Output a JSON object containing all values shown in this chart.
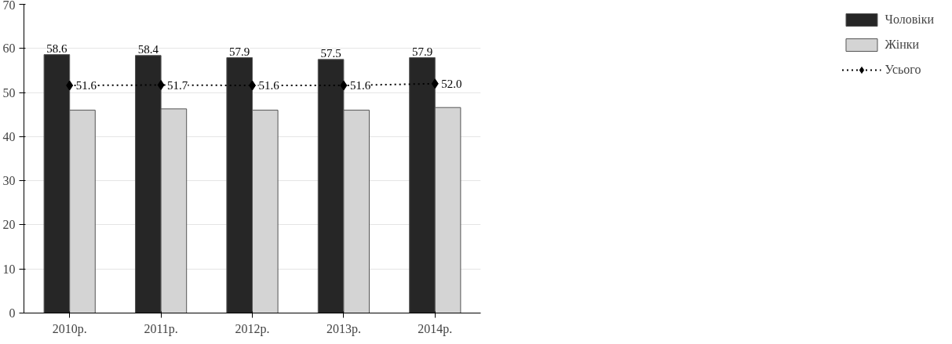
{
  "chart_data": {
    "type": "bar",
    "categories": [
      "2010р.",
      "2011р.",
      "2012р.",
      "2013р.",
      "2014р."
    ],
    "series": [
      {
        "name": "Чоловіки",
        "color": "#262626",
        "values": [
          58.6,
          58.4,
          57.9,
          57.5,
          57.9
        ],
        "value_labels": [
          "58.6",
          "58.4",
          "57.9",
          "57.5",
          "57.9"
        ]
      },
      {
        "name": "Жінки",
        "color": "#d4d4d4",
        "values": [
          46.0,
          46.3,
          46.0,
          46.0,
          46.6
        ]
      },
      {
        "name": "Усього",
        "type": "line",
        "color": "#000000",
        "marker": "diamond",
        "line_style": "dotted",
        "values": [
          51.6,
          51.7,
          51.6,
          51.6,
          52.0
        ],
        "value_labels": [
          "51.6",
          "51.7",
          "51.6",
          "51.6",
          "52.0"
        ]
      }
    ],
    "ylim": [
      0,
      70
    ],
    "yticks": [
      0,
      10,
      20,
      30,
      40,
      50,
      60,
      70
    ],
    "grid": "y",
    "legend": "right"
  }
}
